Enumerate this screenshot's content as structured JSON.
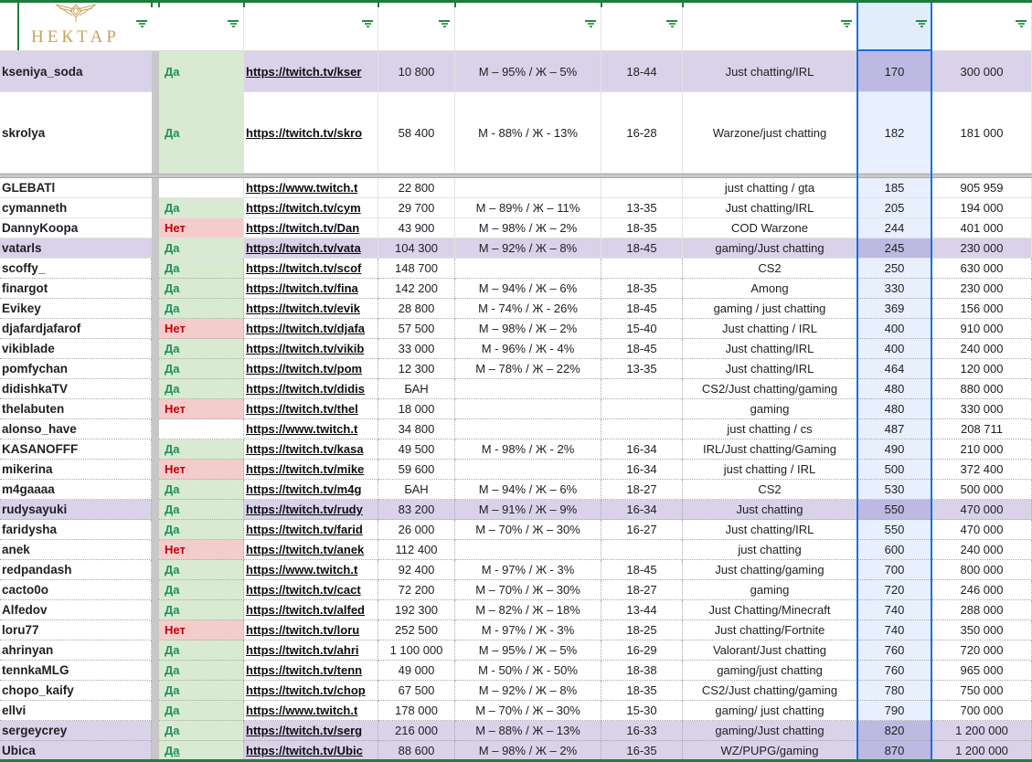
{
  "logo": {
    "brand": "НЕКТАР",
    "emblem_icon": "wings-ornament-icon"
  },
  "colors": {
    "filter_range_green": "#1c7d3c",
    "selected_column_blue": "#1a6fe0",
    "highlight_row_purple": "#d9d2e9",
    "yes_cell_bg": "#d9ead3",
    "yes_text": "#1f8e5c",
    "no_cell_bg": "#f4cccc",
    "no_text": "#c00000",
    "brand_gold": "#c9a25c"
  },
  "header": {
    "filter_icon": "filter-icon",
    "filter_columns": [
      "name",
      "agreed",
      "url",
      "viewers",
      "gender",
      "age",
      "category",
      "price",
      "followers"
    ],
    "selected_column": "price"
  },
  "table": {
    "frozen_rows": [
      {
        "name": "kseniya_soda",
        "agreed": "Да",
        "url": "https://twitch.tv/kser",
        "viewers": "10 800",
        "gender": "М – 95% / Ж – 5%",
        "age": "18-44",
        "category": "Just chatting/IRL",
        "price": "170",
        "followers": "300 000",
        "highlight": true
      },
      {
        "name": "skrolya",
        "agreed": "Да",
        "url": "https://twitch.tv/skro",
        "viewers": "58 400",
        "gender": "М - 88% / Ж - 13%",
        "age": "16-28",
        "category": "Warzone/just chatting",
        "price": "182",
        "followers": "181 000"
      }
    ],
    "rows": [
      {
        "name": "GLEBATl",
        "agreed": "",
        "url": "https://www.twitch.t",
        "viewers": "22 800",
        "gender": "",
        "age": "",
        "category": "just chatting / gta",
        "price": "185",
        "followers": "905 959"
      },
      {
        "name": "cymanneth",
        "agreed": "Да",
        "url": "https://twitch.tv/cym",
        "viewers": "29 700",
        "gender": "М – 89% / Ж – 11%",
        "age": "13-35",
        "category": "Just chatting/IRL",
        "price": "205",
        "followers": "194 000"
      },
      {
        "name": "DannyKoopa",
        "agreed": "Нет",
        "url": "https://twitch.tv/Dan",
        "viewers": "43 900",
        "gender": "М – 98% / Ж – 2%",
        "age": "18-35",
        "category": "COD Warzone",
        "price": "244",
        "followers": "401 000"
      },
      {
        "name": "vatarls",
        "agreed": "Да",
        "url": "https://twitch.tv/vata",
        "viewers": "104 300",
        "gender": "М – 92% / Ж – 8%",
        "age": "18-45",
        "category": "gaming/Just chatting",
        "price": "245",
        "followers": "230 000",
        "highlight": true
      },
      {
        "name": "scoffy_",
        "agreed": "Да",
        "url": "https://twitch.tv/scof",
        "viewers": "148 700",
        "gender": "",
        "age": "",
        "category": "CS2",
        "price": "250",
        "followers": "630 000"
      },
      {
        "name": "finargot",
        "agreed": "Да",
        "url": "https://twitch.tv/fina",
        "viewers": "142 200",
        "gender": "М – 94% / Ж – 6%",
        "age": "18-35",
        "category": "Among",
        "price": "330",
        "followers": "230 000"
      },
      {
        "name": "Evikey",
        "agreed": "Да",
        "url": "https://twitch.tv/evik",
        "viewers": "28 800",
        "gender": "М - 74% / Ж - 26%",
        "age": "18-45",
        "category": "gaming / just chatting",
        "price": "369",
        "followers": "156 000"
      },
      {
        "name": "djafardjafarof",
        "agreed": "Нет",
        "url": "https://twitch.tv/djafa",
        "viewers": "57 500",
        "gender": "М – 98% / Ж – 2%",
        "age": "15-40",
        "category": "Just chatting / IRL",
        "price": "400",
        "followers": "910 000"
      },
      {
        "name": "vikiblade",
        "agreed": "Да",
        "url": "https://twitch.tv/vikib",
        "viewers": "33 000",
        "gender": "М - 96% / Ж - 4%",
        "age": "18-45",
        "category": "Just chatting/IRL",
        "price": "400",
        "followers": "240 000"
      },
      {
        "name": "pomfychan",
        "agreed": "Да",
        "url": "https://twitch.tv/pom",
        "viewers": "12 300",
        "gender": "М – 78% / Ж – 22%",
        "age": "13-35",
        "category": "Just chatting/IRL",
        "price": "464",
        "followers": "120 000"
      },
      {
        "name": "didishkaTV",
        "agreed": "Да",
        "url": "https://twitch.tv/didis",
        "viewers": "БАН",
        "gender": "",
        "age": "",
        "category": "CS2/Just chatting/gaming",
        "price": "480",
        "followers": "880 000"
      },
      {
        "name": "thelabuten",
        "agreed": "Нет",
        "url": "https://twitch.tv/thel",
        "viewers": "18 000",
        "gender": "",
        "age": "",
        "category": "gaming",
        "price": "480",
        "followers": "330 000"
      },
      {
        "name": "alonso_have",
        "agreed": "",
        "url": "https://www.twitch.t",
        "viewers": "34 800",
        "gender": "",
        "age": "",
        "category": "just chatting / cs",
        "price": "487",
        "followers": "208 711"
      },
      {
        "name": "KASANOFFF",
        "agreed": "Да",
        "url": "https://twitch.tv/kasa",
        "viewers": "49 500",
        "gender": "М - 98% / Ж - 2%",
        "age": "16-34",
        "category": "IRL/Just chatting/Gaming",
        "price": "490",
        "followers": "210 000"
      },
      {
        "name": "mikerina",
        "agreed": "Нет",
        "url": "https://twitch.tv/mike",
        "viewers": "59 600",
        "gender": "",
        "age": "16-34",
        "category": "just chatting / IRL",
        "price": "500",
        "followers": "372 400"
      },
      {
        "name": "m4gaaaa",
        "agreed": "Да",
        "url": "https://twitch.tv/m4g",
        "viewers": "БАН",
        "gender": "М – 94% / Ж – 6%",
        "age": "18-27",
        "category": "CS2",
        "price": "530",
        "followers": "500 000"
      },
      {
        "name": "rudysayuki",
        "agreed": "Да",
        "url": "https://twitch.tv/rudy",
        "viewers": "83 200",
        "gender": "М – 91% / Ж – 9%",
        "age": "16-34",
        "category": "Just chatting",
        "price": "550",
        "followers": "470 000",
        "highlight": true
      },
      {
        "name": "faridysha",
        "agreed": "Да",
        "url": "https://twitch.tv/farid",
        "viewers": "26 000",
        "gender": "М – 70% / Ж – 30%",
        "age": "16-27",
        "category": "Just chatting/IRL",
        "price": "550",
        "followers": "470 000"
      },
      {
        "name": "anek",
        "agreed": "Нет",
        "url": "https://twitch.tv/anek",
        "viewers": "112 400",
        "gender": "",
        "age": "",
        "category": "just chatting",
        "price": "600",
        "followers": "240 000"
      },
      {
        "name": "redpandash",
        "agreed": "Да",
        "url": "https://www.twitch.t",
        "viewers": "92 400",
        "gender": "М - 97% / Ж - 3%",
        "age": "18-45",
        "category": "Just chatting/gaming",
        "price": "700",
        "followers": "800 000"
      },
      {
        "name": "cacto0o",
        "agreed": "Да",
        "url": "https://twitch.tv/cact",
        "viewers": "72 200",
        "gender": "М – 70% / Ж – 30%",
        "age": "18-27",
        "category": "gaming",
        "price": "720",
        "followers": "246 000"
      },
      {
        "name": "Alfedov",
        "agreed": "Да",
        "url": "https://twitch.tv/alfed",
        "viewers": "192 300",
        "gender": "М – 82% / Ж – 18%",
        "age": "13-44",
        "category": "Just Chatting/Minecraft",
        "price": "740",
        "followers": "288 000"
      },
      {
        "name": "loru77",
        "agreed": "Нет",
        "url": "https://twitch.tv/loru",
        "viewers": "252 500",
        "gender": "М - 97% / Ж - 3%",
        "age": "18-25",
        "category": "Just chatting/Fortnite",
        "price": "740",
        "followers": "350 000"
      },
      {
        "name": "ahrinyan",
        "agreed": "Да",
        "url": "https://twitch.tv/ahri",
        "viewers": "1 100 000",
        "gender": "М – 95% / Ж – 5%",
        "age": "16-29",
        "category": "Valorant/Just chatting",
        "price": "760",
        "followers": "720 000"
      },
      {
        "name": "tennkaMLG",
        "agreed": "Да",
        "url": "https://twitch.tv/tenn",
        "viewers": "49 000",
        "gender": "М - 50% / Ж - 50%",
        "age": "18-38",
        "category": "gaming/just chatting",
        "price": "760",
        "followers": "965 000"
      },
      {
        "name": "chopo_kaify",
        "agreed": "Да",
        "url": "https://twitch.tv/chop",
        "viewers": "67 500",
        "gender": "М – 92% / Ж – 8%",
        "age": "18-35",
        "category": "CS2/Just chatting/gaming",
        "price": "780",
        "followers": "750 000"
      },
      {
        "name": "ellvi",
        "agreed": "Да",
        "url": "https://www.twitch.t",
        "viewers": "178 000",
        "gender": "М – 70% / Ж – 30%",
        "age": "15-30",
        "category": "gaming/ just chatting",
        "price": "790",
        "followers": "700 000"
      },
      {
        "name": "sergeycrey",
        "agreed": "Да",
        "url": "https://twitch.tv/serg",
        "viewers": "216 000",
        "gender": "М – 88% / Ж – 13%",
        "age": "16-33",
        "category": "gaming/Just chatting",
        "price": "820",
        "followers": "1 200 000",
        "highlight": true
      },
      {
        "name": "Ubica",
        "agreed": "Да",
        "url": "https://twitch.tv/Ubic",
        "viewers": "88 600",
        "gender": "М – 98% / Ж – 2%",
        "age": "16-35",
        "category": "WZ/PUPG/gaming",
        "price": "870",
        "followers": "1 200 000",
        "highlight": true,
        "agreed_underline": true
      }
    ]
  }
}
